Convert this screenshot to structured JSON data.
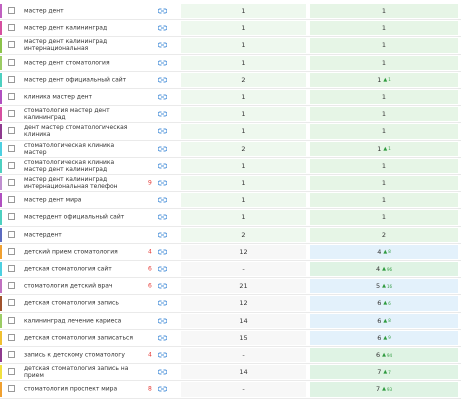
{
  "rows": [
    {
      "keyword": "мастер дент",
      "pos": 1,
      "cur": 1,
      "bar": "#c060c0",
      "c1": "#eef8ee",
      "c2": "#e6f5e6"
    },
    {
      "keyword": "мастер дент калининград",
      "pos": 1,
      "cur": 1,
      "bar": "#d64fa0",
      "c1": "#eef8ee",
      "c2": "#e6f5e6"
    },
    {
      "keyword": "мастер дент калининград интернациональная",
      "pos": 1,
      "cur": 1,
      "bar": "#8bc34a",
      "c1": "#eef8ee",
      "c2": "#e6f5e6"
    },
    {
      "keyword": "мастер дент стоматология",
      "pos": 1,
      "cur": 1,
      "bar": "#9ccc65",
      "c1": "#eef8ee",
      "c2": "#e6f5e6"
    },
    {
      "keyword": "мастер дент официальный сайт",
      "pos": 2,
      "cur": 1,
      "change": 1,
      "bar": "#4dd0c0",
      "c1": "#eef8ee",
      "c2": "#e6f5e6"
    },
    {
      "keyword": "клиника мастер дент",
      "pos": 1,
      "cur": 1,
      "bar": "#b04fc0",
      "c1": "#eef8ee",
      "c2": "#e6f5e6"
    },
    {
      "keyword": "стоматология мастер дент калининград",
      "pos": 1,
      "cur": 1,
      "bar": "#d64fa0",
      "c1": "#eef8ee",
      "c2": "#e6f5e6"
    },
    {
      "keyword": "дент мастер стоматологическая клиника",
      "pos": 1,
      "cur": 1,
      "bar": "#8e3a8e",
      "c1": "#eef8ee",
      "c2": "#e6f5e6"
    },
    {
      "keyword": "стоматологическая клиника мастер",
      "pos": 2,
      "cur": 1,
      "change": 1,
      "bar": "#4dd0e1",
      "c1": "#eef8ee",
      "c2": "#e6f5e6"
    },
    {
      "keyword": "стоматологическая клиника мастер дент калининград",
      "pos": 1,
      "cur": 1,
      "bar": "#4dd0c0",
      "c1": "#eef8ee",
      "c2": "#e6f5e6"
    },
    {
      "keyword": "мастер дент калининград интернациональная телефон",
      "red": 9,
      "pos": 1,
      "cur": 1,
      "bar": "#c090d0",
      "c1": "#eef8ee",
      "c2": "#e6f5e6"
    },
    {
      "keyword": "мастер дент мира",
      "pos": 1,
      "cur": 1,
      "bar": "#b04fc0",
      "c1": "#eef8ee",
      "c2": "#e6f5e6"
    },
    {
      "keyword": "мастердент официальный сайт",
      "pos": 1,
      "cur": 1,
      "bar": "#4dd0c0",
      "c1": "#eef8ee",
      "c2": "#e6f5e6"
    },
    {
      "keyword": "мастердент",
      "pos": 2,
      "cur": 2,
      "bar": "#5c6bc0",
      "c1": "#eef8ee",
      "c2": "#e6f5e6"
    },
    {
      "keyword": "детский прием стоматология",
      "red": 4,
      "pos": 12,
      "cur": 4,
      "change": 8,
      "bar": "#f0a030",
      "c1": "#f7f7f7",
      "c2": "#e3f1fb"
    },
    {
      "keyword": "детская стоматология сайт",
      "red": 6,
      "pos": "-",
      "cur": 4,
      "change": 96,
      "bar": "#4dd0e1",
      "c1": "#f7f7f7",
      "c2": "#dff3e4"
    },
    {
      "keyword": "стоматология детский врач",
      "red": 6,
      "pos": 21,
      "cur": 5,
      "change": 16,
      "bar": "#c070c0",
      "c1": "#f7f7f7",
      "c2": "#e3f1fb"
    },
    {
      "keyword": "детская стоматология запись",
      "pos": 12,
      "cur": 6,
      "change": 6,
      "bar": "#a0522d",
      "c1": "#f7f7f7",
      "c2": "#e3f1fb"
    },
    {
      "keyword": "калининград лечение кариеса",
      "pos": 14,
      "cur": 6,
      "change": 8,
      "bar": "#9ccc65",
      "c1": "#f7f7f7",
      "c2": "#e3f1fb"
    },
    {
      "keyword": "детская стоматология записаться",
      "pos": 15,
      "cur": 6,
      "change": 9,
      "bar": "#f0c030",
      "c1": "#f7f7f7",
      "c2": "#e3f1fb"
    },
    {
      "keyword": "запись к детскому стоматологу",
      "red": 4,
      "pos": "-",
      "cur": 6,
      "change": 94,
      "bar": "#8e3a8e",
      "c1": "#f7f7f7",
      "c2": "#dff3e4"
    },
    {
      "keyword": "детская стоматология запись на прием",
      "pos": 14,
      "cur": 7,
      "change": 7,
      "bar": "#f0e040",
      "c1": "#f7f7f7",
      "c2": "#dff3e4"
    },
    {
      "keyword": "стоматология проспект мира",
      "red": 8,
      "pos": "-",
      "cur": 7,
      "change": 93,
      "bar": "#f0a030",
      "c1": "#f7f7f7",
      "c2": "#dff3e4"
    }
  ]
}
